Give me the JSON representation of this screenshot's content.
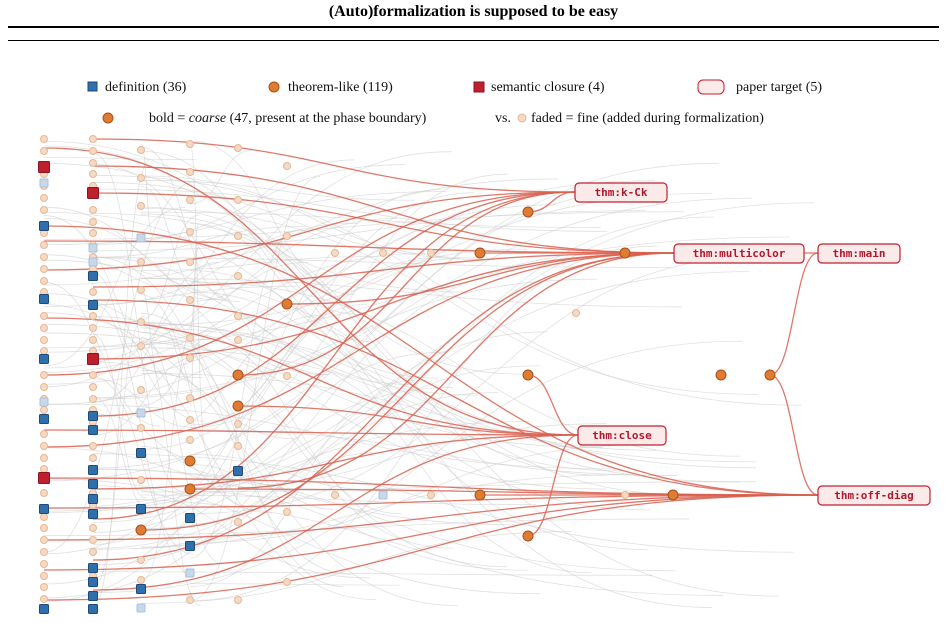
{
  "page": {
    "title": "(Auto)formalization is supposed to be easy"
  },
  "legend": {
    "definition": "definition (36)",
    "theorem": "theorem-like (119)",
    "closure": "semantic closure (4)",
    "target": "paper target (5)",
    "bold_prefix": "bold = ",
    "bold_coarse": "coarse",
    "bold_suffix": " (47, present at the phase boundary)",
    "vs": "vs.",
    "faded": "faded = fine (added during formalization)"
  },
  "targets": {
    "kck": "thm:k-Ck",
    "multicolor": "thm:multicolor",
    "main": "thm:main",
    "close": "thm:close",
    "offdiag": "thm:off-diag"
  },
  "colors": {
    "definition": "#2f6fab",
    "theorem": "#e07b33",
    "closure": "#c0202e",
    "target_fill": "#fbeaea",
    "target_stroke": "#c0202e",
    "edge_coarse": "#d9604f",
    "edge_fine": "#c9c9c9"
  }
}
